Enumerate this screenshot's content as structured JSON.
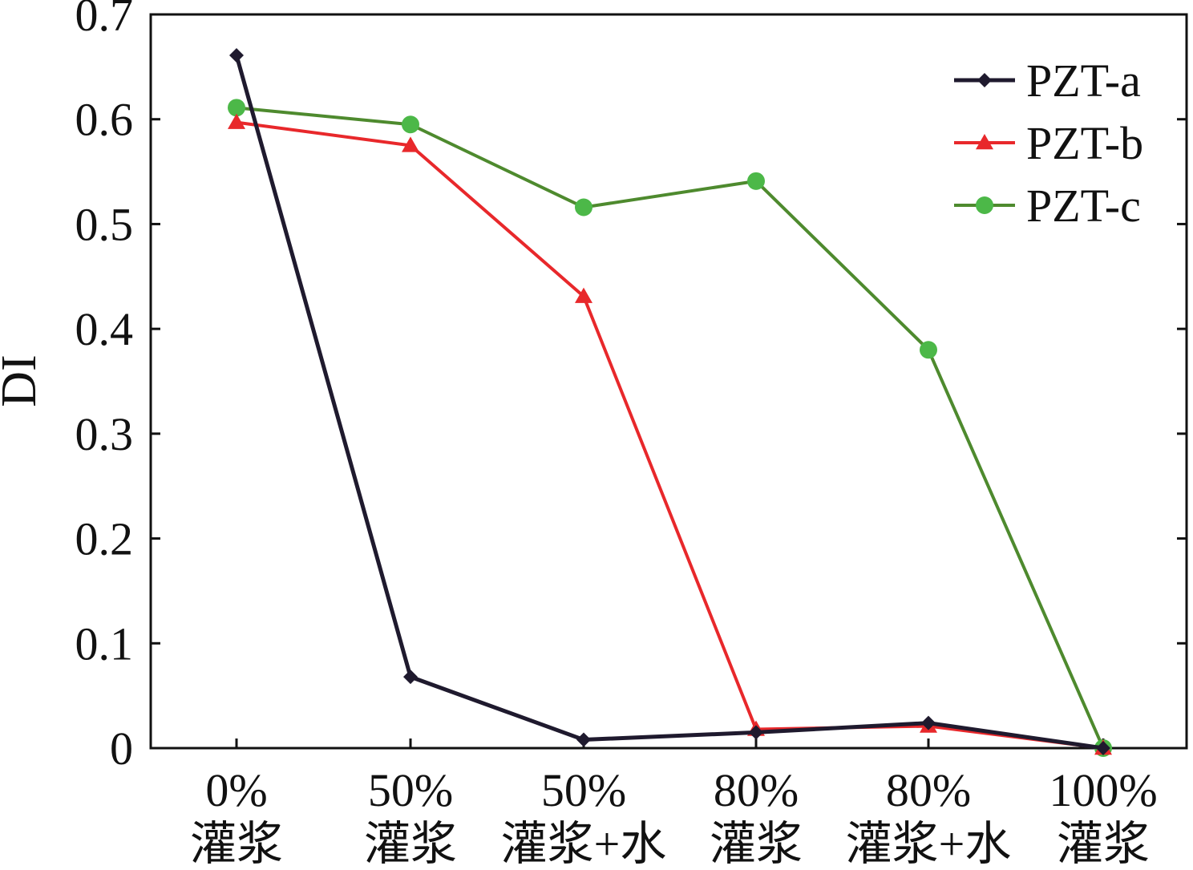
{
  "chart_data": {
    "type": "line",
    "title": "",
    "xlabel": "",
    "ylabel": "DI",
    "ylim": [
      0,
      0.7
    ],
    "yticks": [
      "0",
      "0.1",
      "0.2",
      "0.3",
      "0.4",
      "0.5",
      "0.6",
      "0.7"
    ],
    "categories": [
      {
        "line1": "0%",
        "line2": "灌浆"
      },
      {
        "line1": "50%",
        "line2": "灌浆"
      },
      {
        "line1": "50%",
        "line2": "灌浆+水"
      },
      {
        "line1": "80%",
        "line2": "灌浆"
      },
      {
        "line1": "80%",
        "line2": "灌浆+水"
      },
      {
        "line1": "100%",
        "line2": "灌浆"
      }
    ],
    "series": [
      {
        "name": "PZT-a",
        "color": "#1f1a2e",
        "marker": "diamond",
        "values": [
          0.661,
          0.068,
          0.008,
          0.015,
          0.024,
          0.0
        ]
      },
      {
        "name": "PZT-b",
        "color": "#e8282b",
        "marker": "triangle",
        "values": [
          0.597,
          0.575,
          0.431,
          0.018,
          0.021,
          0.0
        ]
      },
      {
        "name": "PZT-c",
        "color": "#4e8a2e",
        "marker": "circle",
        "values": [
          0.611,
          0.595,
          0.516,
          0.541,
          0.38,
          0.0
        ]
      }
    ],
    "marker_colors": {
      "PZT-c": "#4cb848"
    },
    "legend_position": "top-right",
    "grid": false
  }
}
